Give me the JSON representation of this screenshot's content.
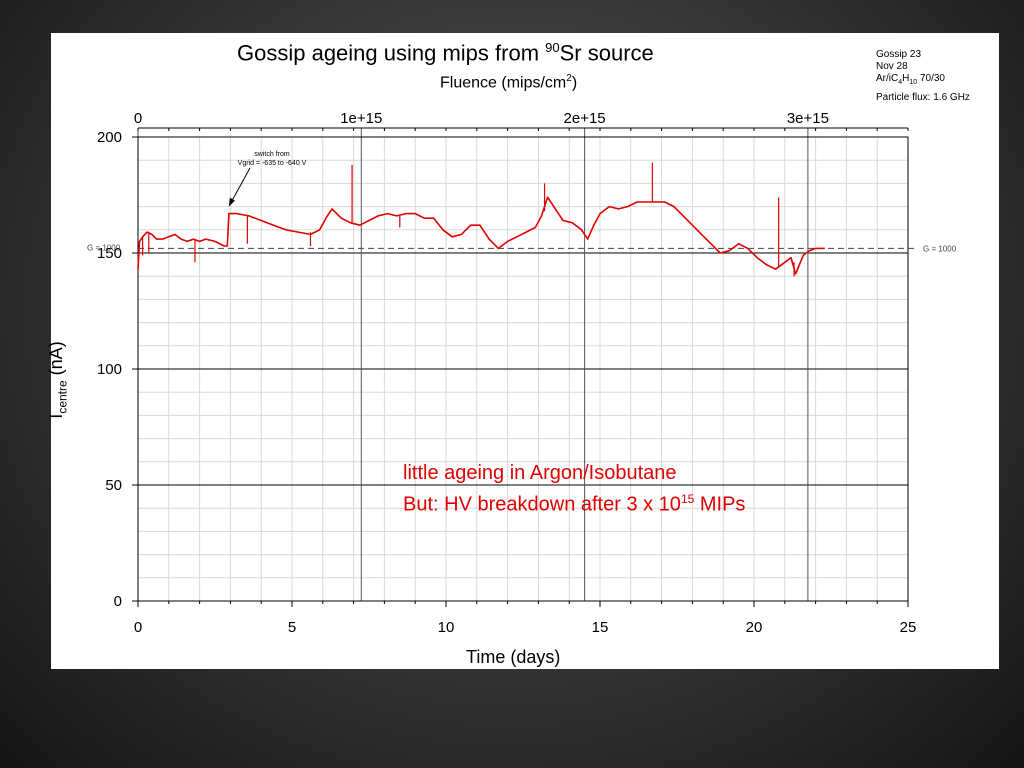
{
  "chart_data": {
    "type": "line",
    "title_main": "Gossip ageing using mips from ",
    "title_sup": "90",
    "title_end": "Sr source",
    "top_axis_label_main": "Fluence (mips/cm",
    "top_axis_label_sup": "2",
    "top_axis_label_end": ")",
    "top_ticks": [
      "0",
      "1e+15",
      "2e+15",
      "3e+15"
    ],
    "top_tick_days": [
      0,
      7.25,
      14.5,
      21.75
    ],
    "xlabel": "Time (days)",
    "ylabel_main": "I",
    "ylabel_sub": "centre",
    "ylabel_end": " (nA)",
    "xlim": [
      0,
      25
    ],
    "ylim": [
      0,
      200
    ],
    "x_ticks": [
      "0",
      "5",
      "10",
      "15",
      "20",
      "25"
    ],
    "y_ticks": [
      "0",
      "50",
      "100",
      "150",
      "200"
    ],
    "grid": true,
    "reference_level": 152,
    "reference_label": "G = 1000",
    "line_color": "#e00000",
    "series": [
      {
        "points": [
          [
            0.0,
            143
          ],
          [
            0.05,
            155
          ],
          [
            0.15,
            157
          ],
          [
            0.3,
            159
          ],
          [
            0.45,
            158
          ],
          [
            0.6,
            156
          ],
          [
            0.8,
            156
          ],
          [
            1.0,
            157
          ],
          [
            1.2,
            158
          ],
          [
            1.4,
            156
          ],
          [
            1.6,
            155
          ],
          [
            1.8,
            156
          ],
          [
            2.0,
            155
          ],
          [
            2.2,
            156
          ],
          [
            2.5,
            155
          ],
          [
            2.8,
            153
          ],
          [
            2.9,
            153
          ],
          [
            2.95,
            167
          ],
          [
            3.2,
            167
          ],
          [
            3.6,
            166
          ],
          [
            4.0,
            164
          ],
          [
            4.4,
            162
          ],
          [
            4.8,
            160
          ],
          [
            5.2,
            159
          ],
          [
            5.6,
            158
          ],
          [
            5.9,
            160
          ],
          [
            6.1,
            165
          ],
          [
            6.3,
            169
          ],
          [
            6.6,
            165
          ],
          [
            6.9,
            163
          ],
          [
            7.2,
            162
          ],
          [
            7.5,
            164
          ],
          [
            7.8,
            166
          ],
          [
            8.1,
            167
          ],
          [
            8.4,
            166
          ],
          [
            8.7,
            167
          ],
          [
            9.0,
            167
          ],
          [
            9.3,
            165
          ],
          [
            9.6,
            165
          ],
          [
            9.9,
            160
          ],
          [
            10.2,
            157
          ],
          [
            10.5,
            158
          ],
          [
            10.8,
            162
          ],
          [
            11.1,
            162
          ],
          [
            11.4,
            156
          ],
          [
            11.7,
            152
          ],
          [
            12.0,
            155
          ],
          [
            12.3,
            157
          ],
          [
            12.6,
            159
          ],
          [
            12.9,
            161
          ],
          [
            13.1,
            166
          ],
          [
            13.3,
            174
          ],
          [
            13.5,
            170
          ],
          [
            13.8,
            164
          ],
          [
            14.1,
            163
          ],
          [
            14.4,
            160
          ],
          [
            14.6,
            156
          ],
          [
            14.8,
            162
          ],
          [
            15.0,
            167
          ],
          [
            15.3,
            170
          ],
          [
            15.6,
            169
          ],
          [
            15.9,
            170
          ],
          [
            16.2,
            172
          ],
          [
            16.5,
            172
          ],
          [
            16.8,
            172
          ],
          [
            17.1,
            172
          ],
          [
            17.4,
            170
          ],
          [
            17.7,
            166
          ],
          [
            18.0,
            162
          ],
          [
            18.3,
            158
          ],
          [
            18.6,
            154
          ],
          [
            18.9,
            150
          ],
          [
            19.2,
            151
          ],
          [
            19.5,
            154
          ],
          [
            19.8,
            152
          ],
          [
            20.1,
            148
          ],
          [
            20.4,
            145
          ],
          [
            20.7,
            143
          ],
          [
            21.0,
            146
          ],
          [
            21.2,
            148
          ],
          [
            21.35,
            141
          ],
          [
            21.6,
            149
          ],
          [
            21.8,
            151
          ],
          [
            22.0,
            152
          ],
          [
            22.3,
            152
          ]
        ]
      }
    ],
    "spikes": [
      {
        "x": 0.15,
        "y1": 157,
        "y2": 149
      },
      {
        "x": 0.35,
        "y1": 159,
        "y2": 150
      },
      {
        "x": 1.85,
        "y1": 156,
        "y2": 146
      },
      {
        "x": 3.55,
        "y1": 166,
        "y2": 154
      },
      {
        "x": 5.6,
        "y1": 159,
        "y2": 153
      },
      {
        "x": 6.95,
        "y1": 163,
        "y2": 188
      },
      {
        "x": 8.5,
        "y1": 166,
        "y2": 161
      },
      {
        "x": 13.2,
        "y1": 168,
        "y2": 180
      },
      {
        "x": 16.7,
        "y1": 172,
        "y2": 189
      },
      {
        "x": 20.8,
        "y1": 144,
        "y2": 174
      },
      {
        "x": 21.3,
        "y1": 146,
        "y2": 140
      }
    ],
    "annotation": {
      "line1": "switch from",
      "line2": "Vgrid = -635 to -640 V",
      "arrow_to": [
        2.95,
        170
      ]
    }
  },
  "info": {
    "line1": "Gossip 23",
    "line2": "Nov 28",
    "line3_a": "Ar/iC",
    "line3_sub1": "4",
    "line3_b": "H",
    "line3_sub2": "10",
    "line3_c": " 70/30",
    "line4": "Particle flux: 1.6 GHz"
  },
  "notes": {
    "line1": "little ageing in Argon/Isobutane",
    "line2_main": "But: HV breakdown after 3 x 10",
    "line2_sup": "15",
    "line2_end": " MIPs"
  }
}
